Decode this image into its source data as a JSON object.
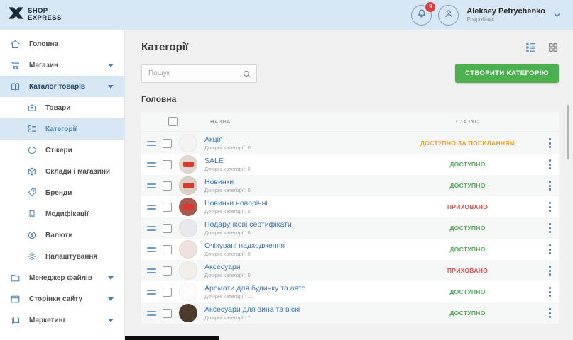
{
  "brand": {
    "name_line1": "SHOP",
    "name_line2": "EXPRESS"
  },
  "topbar": {
    "notification_count": "9",
    "user_name": "Aleksey Petrychenko",
    "user_role": "Розробник"
  },
  "sidebar": {
    "items": [
      {
        "key": "home",
        "label": "Головна",
        "icon": "home-icon",
        "level": 0,
        "expandable": false,
        "active": false,
        "selected": false
      },
      {
        "key": "shop",
        "label": "Магазин",
        "icon": "cart-icon",
        "level": 0,
        "expandable": true,
        "active": false,
        "selected": false
      },
      {
        "key": "catalog",
        "label": "Каталог товарів",
        "icon": "catalog-icon",
        "level": 0,
        "expandable": true,
        "active": true,
        "selected": false
      },
      {
        "key": "products",
        "label": "Товари",
        "icon": "products-icon",
        "level": 1,
        "expandable": false,
        "active": false,
        "selected": false
      },
      {
        "key": "categories",
        "label": "Категорії",
        "icon": "categories-icon",
        "level": 1,
        "expandable": false,
        "active": false,
        "selected": true
      },
      {
        "key": "stickers",
        "label": "Стікери",
        "icon": "stickers-icon",
        "level": 1,
        "expandable": false,
        "active": false,
        "selected": false
      },
      {
        "key": "warehouses",
        "label": "Склади і магазини",
        "icon": "warehouse-icon",
        "level": 1,
        "expandable": false,
        "active": false,
        "selected": false
      },
      {
        "key": "brands",
        "label": "Бренди",
        "icon": "brands-icon",
        "level": 1,
        "expandable": false,
        "active": false,
        "selected": false
      },
      {
        "key": "modifications",
        "label": "Модифікації",
        "icon": "modifications-icon",
        "level": 1,
        "expandable": false,
        "active": false,
        "selected": false
      },
      {
        "key": "currencies",
        "label": "Валюти",
        "icon": "currency-icon",
        "level": 1,
        "expandable": false,
        "active": false,
        "selected": false
      },
      {
        "key": "settings",
        "label": "Налаштування",
        "icon": "settings-icon",
        "level": 1,
        "expandable": false,
        "active": false,
        "selected": false
      },
      {
        "key": "files",
        "label": "Менеджер файлів",
        "icon": "files-icon",
        "level": 0,
        "expandable": true,
        "active": false,
        "selected": false
      },
      {
        "key": "site-pages",
        "label": "Сторінки сайту",
        "icon": "pages-icon",
        "level": 0,
        "expandable": true,
        "active": false,
        "selected": false
      },
      {
        "key": "marketing",
        "label": "Маркетинг",
        "icon": "marketing-icon",
        "level": 0,
        "expandable": true,
        "active": false,
        "selected": false
      }
    ]
  },
  "main": {
    "title": "Категорії",
    "search_placeholder": "Пошук",
    "create_button": "СТВОРИТИ КАТЕГОРІЮ",
    "section_title": "Головна",
    "table": {
      "columns": {
        "name": "НАЗВА",
        "status": "СТАТУС"
      },
      "rows": [
        {
          "name": "Акція",
          "children": "Дочірні категорії: 0",
          "status": "ДОСТУПНО ЗА ПОСИЛАННЯМ",
          "status_type": "link",
          "avatar_color": "#f4f3f1",
          "badge": false
        },
        {
          "name": "SALE",
          "children": "Дочірні категорії: 0",
          "status": "ДОСТУПНО",
          "status_type": "available",
          "avatar_color": "#e4d6d0",
          "badge": true
        },
        {
          "name": "Новинки",
          "children": "Дочірні категорії: 0",
          "status": "ДОСТУПНО",
          "status_type": "available",
          "avatar_color": "#dccfc5",
          "badge": true
        },
        {
          "name": "Новинки новорічні",
          "children": "Дочірні категорії: 0",
          "status": "ПРИХОВАНО",
          "status_type": "hidden",
          "avatar_color": "#a85a50",
          "badge": true
        },
        {
          "name": "Подарункові сертифікати",
          "children": "Дочірні категорії: 0",
          "status": "ДОСТУПНО",
          "status_type": "available",
          "avatar_color": "#e9e9ed",
          "badge": false
        },
        {
          "name": "Очікувані надходження",
          "children": "Дочірні категорії: 0",
          "status": "ДОСТУПНО",
          "status_type": "available",
          "avatar_color": "#efe2de",
          "badge": false
        },
        {
          "name": "Аксесуари",
          "children": "Дочірні категорії: 0",
          "status": "ПРИХОВАНО",
          "status_type": "hidden",
          "avatar_color": "#f1efe9",
          "badge": false
        },
        {
          "name": "Аромати для будинку та авто",
          "children": "Дочірні категорії: 10",
          "status": "ДОСТУПНО",
          "status_type": "available",
          "avatar_color": "#fcfcfc",
          "badge": false
        },
        {
          "name": "Аксесуари для вина та віскі",
          "children": "Дочірні категорії: 7",
          "status": "ДОСТУПНО",
          "status_type": "available",
          "avatar_color": "#4e3a2c",
          "badge": false
        }
      ]
    }
  },
  "colors": {
    "topbar_bg": "#d7e7f5",
    "accent_blue": "#4077ad",
    "button_green": "#4caf50",
    "status_available": "#4caf50",
    "status_hidden": "#d9534f",
    "status_link": "#f0a22e",
    "notification_red": "#e53935"
  }
}
